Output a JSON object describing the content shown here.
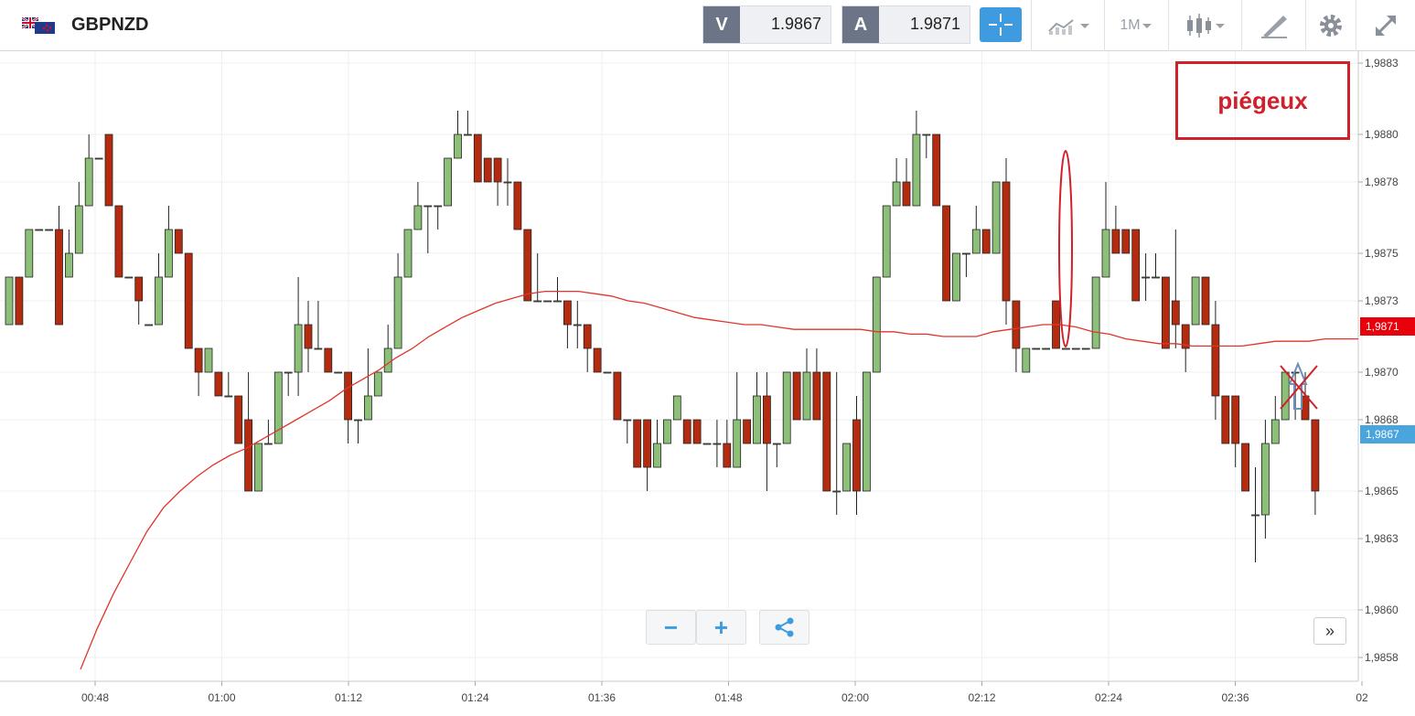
{
  "header": {
    "symbol": "GBPNZD",
    "flag_icon": "gb-nz-flag-icon",
    "sell_tag": "V",
    "sell_price": "1.9867",
    "buy_tag": "A",
    "buy_price": "1.9871",
    "timeframe": "1M"
  },
  "annotation": {
    "label": "piégeux"
  },
  "price_tags": {
    "ma_value": "1,9871",
    "last_value": "1,9867"
  },
  "colors": {
    "up": "#8cc079",
    "down": "#b52b0f",
    "ma": "#e0352b",
    "accent": "#3e9be0",
    "annotation": "#d0202a"
  },
  "chart_data": {
    "type": "candlestick",
    "y_ticks": [
      "1,9858",
      "1,9860",
      "1,9863",
      "1,9865",
      "1,9868",
      "1,9870",
      "1,9873",
      "1,9875",
      "1,9878",
      "1,9880",
      "1,9883"
    ],
    "y_range": [
      1.9857,
      1.98835
    ],
    "x_ticks": [
      "00:48",
      "01:00",
      "01:12",
      "01:24",
      "01:36",
      "01:48",
      "02:00",
      "02:12",
      "02:24",
      "02:36",
      "02"
    ],
    "candles": [
      [
        1.9872,
        1.9874,
        1.9872,
        1.9874
      ],
      [
        1.9874,
        1.9874,
        1.9872,
        1.9872
      ],
      [
        1.9874,
        1.9876,
        1.9874,
        1.9876
      ],
      [
        1.9876,
        1.9876,
        1.9876,
        1.9876
      ],
      [
        1.9876,
        1.9876,
        1.9876,
        1.9876
      ],
      [
        1.9876,
        1.9877,
        1.9872,
        1.9872
      ],
      [
        1.9874,
        1.9876,
        1.9874,
        1.9875
      ],
      [
        1.9875,
        1.9878,
        1.9875,
        1.9877
      ],
      [
        1.9877,
        1.988,
        1.9877,
        1.9879
      ],
      [
        1.9879,
        1.9879,
        1.9879,
        1.9879
      ],
      [
        1.988,
        1.988,
        1.9877,
        1.9877
      ],
      [
        1.9877,
        1.9877,
        1.9874,
        1.9874
      ],
      [
        1.9874,
        1.9874,
        1.9874,
        1.9874
      ],
      [
        1.9874,
        1.9874,
        1.9872,
        1.9873
      ],
      [
        1.9872,
        1.9872,
        1.9872,
        1.9872
      ],
      [
        1.9872,
        1.9875,
        1.9872,
        1.9874
      ],
      [
        1.9874,
        1.9877,
        1.9874,
        1.9876
      ],
      [
        1.9876,
        1.9876,
        1.9875,
        1.9875
      ],
      [
        1.9875,
        1.9875,
        1.9871,
        1.9871
      ],
      [
        1.9871,
        1.9871,
        1.9869,
        1.987
      ],
      [
        1.987,
        1.9871,
        1.987,
        1.9871
      ],
      [
        1.987,
        1.987,
        1.9869,
        1.9869
      ],
      [
        1.9869,
        1.987,
        1.9869,
        1.9869
      ],
      [
        1.9869,
        1.9869,
        1.9867,
        1.9867
      ],
      [
        1.9868,
        1.987,
        1.9865,
        1.9865
      ],
      [
        1.9865,
        1.9867,
        1.9865,
        1.9867
      ],
      [
        1.9867,
        1.9868,
        1.9867,
        1.9867
      ],
      [
        1.9867,
        1.987,
        1.9867,
        1.987
      ],
      [
        1.987,
        1.987,
        1.9869,
        1.987
      ],
      [
        1.987,
        1.9874,
        1.9869,
        1.9872
      ],
      [
        1.9872,
        1.9873,
        1.987,
        1.9871
      ],
      [
        1.9871,
        1.9873,
        1.9871,
        1.9871
      ],
      [
        1.9871,
        1.9871,
        1.987,
        1.987
      ],
      [
        1.987,
        1.987,
        1.987,
        1.987
      ],
      [
        1.987,
        1.987,
        1.9867,
        1.9868
      ],
      [
        1.9868,
        1.9868,
        1.9867,
        1.9868
      ],
      [
        1.9868,
        1.9871,
        1.9868,
        1.9869
      ],
      [
        1.9869,
        1.987,
        1.9869,
        1.987
      ],
      [
        1.987,
        1.9872,
        1.987,
        1.9871
      ],
      [
        1.9871,
        1.9875,
        1.9871,
        1.9874
      ],
      [
        1.9874,
        1.9876,
        1.9874,
        1.9876
      ],
      [
        1.9876,
        1.9878,
        1.9876,
        1.9877
      ],
      [
        1.9877,
        1.9877,
        1.9875,
        1.9877
      ],
      [
        1.9877,
        1.9877,
        1.9876,
        1.9877
      ],
      [
        1.9877,
        1.9879,
        1.9877,
        1.9879
      ],
      [
        1.9879,
        1.9881,
        1.9879,
        1.988
      ],
      [
        1.988,
        1.9881,
        1.988,
        1.988
      ],
      [
        1.988,
        1.988,
        1.9878,
        1.9878
      ],
      [
        1.9879,
        1.9879,
        1.9878,
        1.9878
      ],
      [
        1.9879,
        1.9879,
        1.9877,
        1.9878
      ],
      [
        1.9878,
        1.9879,
        1.9877,
        1.9878
      ],
      [
        1.9878,
        1.9878,
        1.9876,
        1.9876
      ],
      [
        1.9876,
        1.9876,
        1.9873,
        1.9873
      ],
      [
        1.9873,
        1.9875,
        1.9873,
        1.9873
      ],
      [
        1.9873,
        1.9873,
        1.9873,
        1.9873
      ],
      [
        1.9873,
        1.9874,
        1.9873,
        1.9873
      ],
      [
        1.9873,
        1.9873,
        1.9871,
        1.9872
      ],
      [
        1.9872,
        1.9873,
        1.9871,
        1.9872
      ],
      [
        1.9872,
        1.9872,
        1.987,
        1.9871
      ],
      [
        1.9871,
        1.9871,
        1.987,
        1.987
      ],
      [
        1.987,
        1.987,
        1.987,
        1.987
      ],
      [
        1.987,
        1.987,
        1.9868,
        1.9868
      ],
      [
        1.9868,
        1.9868,
        1.9867,
        1.9868
      ],
      [
        1.9868,
        1.9868,
        1.9866,
        1.9866
      ],
      [
        1.9868,
        1.9868,
        1.9865,
        1.9866
      ],
      [
        1.9866,
        1.9868,
        1.9866,
        1.9867
      ],
      [
        1.9867,
        1.9868,
        1.9867,
        1.9868
      ],
      [
        1.9868,
        1.9869,
        1.9868,
        1.9869
      ],
      [
        1.9868,
        1.9868,
        1.9867,
        1.9867
      ],
      [
        1.9868,
        1.9868,
        1.9867,
        1.9867
      ],
      [
        1.9867,
        1.9867,
        1.9867,
        1.9867
      ],
      [
        1.9867,
        1.9868,
        1.9866,
        1.9867
      ],
      [
        1.9867,
        1.9868,
        1.9866,
        1.9866
      ],
      [
        1.9866,
        1.987,
        1.9866,
        1.9868
      ],
      [
        1.9868,
        1.9868,
        1.9867,
        1.9867
      ],
      [
        1.9867,
        1.987,
        1.9867,
        1.9869
      ],
      [
        1.9869,
        1.987,
        1.9865,
        1.9867
      ],
      [
        1.9867,
        1.9867,
        1.9866,
        1.9867
      ],
      [
        1.9867,
        1.987,
        1.9867,
        1.987
      ],
      [
        1.987,
        1.987,
        1.9868,
        1.9868
      ],
      [
        1.9868,
        1.9871,
        1.9868,
        1.987
      ],
      [
        1.987,
        1.9871,
        1.9868,
        1.9868
      ],
      [
        1.987,
        1.987,
        1.9865,
        1.9865
      ],
      [
        1.9865,
        1.987,
        1.9864,
        1.9865
      ],
      [
        1.9865,
        1.9867,
        1.9865,
        1.9867
      ],
      [
        1.9868,
        1.9869,
        1.9864,
        1.9865
      ],
      [
        1.9865,
        1.987,
        1.9865,
        1.987
      ],
      [
        1.987,
        1.9874,
        1.987,
        1.9874
      ],
      [
        1.9874,
        1.9877,
        1.9874,
        1.9877
      ],
      [
        1.9877,
        1.9879,
        1.9877,
        1.9878
      ],
      [
        1.9878,
        1.9879,
        1.9877,
        1.9877
      ],
      [
        1.9877,
        1.9881,
        1.9877,
        1.988
      ],
      [
        1.988,
        1.988,
        1.9879,
        1.988
      ],
      [
        1.988,
        1.988,
        1.9877,
        1.9877
      ],
      [
        1.9877,
        1.9877,
        1.9873,
        1.9873
      ],
      [
        1.9873,
        1.9875,
        1.9873,
        1.9875
      ],
      [
        1.9875,
        1.9875,
        1.9874,
        1.9875
      ],
      [
        1.9875,
        1.9877,
        1.9875,
        1.9876
      ],
      [
        1.9876,
        1.9876,
        1.9875,
        1.9875
      ],
      [
        1.9875,
        1.9878,
        1.9875,
        1.9878
      ],
      [
        1.9878,
        1.9879,
        1.9872,
        1.9873
      ],
      [
        1.9873,
        1.9873,
        1.987,
        1.9871
      ],
      [
        1.987,
        1.9871,
        1.987,
        1.9871
      ],
      [
        1.9871,
        1.9871,
        1.9871,
        1.9871
      ],
      [
        1.9871,
        1.9871,
        1.9871,
        1.9871
      ],
      [
        1.9873,
        1.9873,
        1.9871,
        1.9871
      ],
      [
        1.9871,
        1.9871,
        1.9871,
        1.9871
      ],
      [
        1.9871,
        1.9871,
        1.9871,
        1.9871
      ],
      [
        1.9871,
        1.9871,
        1.9871,
        1.9871
      ],
      [
        1.9871,
        1.9874,
        1.9871,
        1.9874
      ],
      [
        1.9874,
        1.9878,
        1.9874,
        1.9876
      ],
      [
        1.9876,
        1.9877,
        1.9875,
        1.9875
      ],
      [
        1.9876,
        1.9876,
        1.9875,
        1.9875
      ],
      [
        1.9876,
        1.9876,
        1.9873,
        1.9873
      ],
      [
        1.9874,
        1.9875,
        1.9873,
        1.9874
      ],
      [
        1.9874,
        1.9875,
        1.9874,
        1.9874
      ],
      [
        1.9874,
        1.9874,
        1.9871,
        1.9871
      ],
      [
        1.9873,
        1.9876,
        1.9871,
        1.9872
      ],
      [
        1.9872,
        1.9872,
        1.987,
        1.9871
      ],
      [
        1.9872,
        1.9874,
        1.9872,
        1.9874
      ],
      [
        1.9874,
        1.9874,
        1.9872,
        1.9872
      ],
      [
        1.9872,
        1.9873,
        1.9868,
        1.9869
      ],
      [
        1.9869,
        1.9869,
        1.9867,
        1.9867
      ],
      [
        1.9869,
        1.9869,
        1.9866,
        1.9867
      ],
      [
        1.9867,
        1.9867,
        1.9865,
        1.9865
      ],
      [
        1.9864,
        1.9866,
        1.9862,
        1.9864
      ],
      [
        1.9864,
        1.9868,
        1.9863,
        1.9867
      ],
      [
        1.9867,
        1.9869,
        1.9867,
        1.9868
      ],
      [
        1.9868,
        1.987,
        1.9868,
        1.987
      ],
      [
        1.987,
        1.987,
        1.9868,
        1.987
      ],
      [
        1.9869,
        1.987,
        1.9868,
        1.9868
      ],
      [
        1.9868,
        1.9868,
        1.9864,
        1.9865
      ]
    ],
    "moving_average": [
      [
        1.98575,
        1.98592,
        1.98607,
        1.9862,
        1.98633,
        1.98643,
        1.9865,
        1.98656,
        1.98661,
        1.98665,
        1.98668,
        1.98672,
        1.98676,
        1.9868,
        1.98684,
        1.98688,
        1.98693,
        1.98697,
        1.98701,
        1.98706,
        1.9871,
        1.98715,
        1.98719,
        1.98723,
        1.98726,
        1.98729,
        1.98731,
        1.98733,
        1.98734,
        1.98734,
        1.98734,
        1.98733,
        1.98732,
        1.9873,
        1.98729,
        1.98727,
        1.98725,
        1.98723,
        1.98722,
        1.98721,
        1.9872,
        1.9872,
        1.98719,
        1.98718,
        1.98718,
        1.98718,
        1.98718,
        1.98718,
        1.98717,
        1.98717,
        1.98716,
        1.98716,
        1.98715,
        1.98715,
        1.98715,
        1.98717,
        1.98718,
        1.98719,
        1.9872,
        1.9872,
        1.98719,
        1.98717,
        1.98716,
        1.98714,
        1.98713,
        1.98712,
        1.98712,
        1.98711,
        1.98711,
        1.98711,
        1.98711,
        1.98712,
        1.98713,
        1.98713,
        1.98713,
        1.98714,
        1.98714,
        1.98714
      ]
    ]
  }
}
